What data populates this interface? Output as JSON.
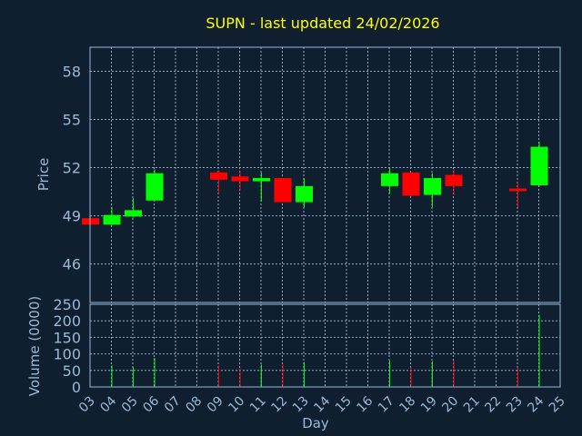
{
  "colors": {
    "background": "#0f1f30",
    "up": "#00ff00",
    "down": "#ff0000",
    "text": "#9ab8d6",
    "title": "#ffff00"
  },
  "chart_data": {
    "type": "candlestick",
    "title": "SUPN - last updated 24/02/2026",
    "xlabel": "Day",
    "price_ylabel": "Price",
    "volume_ylabel": "Volume (0000)",
    "x_ticks": [
      "03",
      "04",
      "05",
      "06",
      "07",
      "08",
      "09",
      "10",
      "11",
      "12",
      "13",
      "14",
      "15",
      "16",
      "17",
      "18",
      "19",
      "20",
      "21",
      "22",
      "23",
      "24",
      "25"
    ],
    "price_ylim": [
      43.6,
      59.5
    ],
    "price_yticks": [
      46,
      49,
      52,
      55,
      58
    ],
    "volume_ylim": [
      0,
      250
    ],
    "volume_yticks": [
      0,
      50,
      100,
      150,
      200,
      250
    ],
    "grid": true,
    "candles": [
      {
        "day": 3,
        "open": 48.85,
        "close": 48.45,
        "high": 48.9,
        "low": 48.45,
        "volume": 0
      },
      {
        "day": 4,
        "open": 48.45,
        "close": 49.05,
        "high": 49.55,
        "low": 48.4,
        "volume": 65
      },
      {
        "day": 5,
        "open": 48.95,
        "close": 49.35,
        "high": 50.1,
        "low": 48.9,
        "volume": 60
      },
      {
        "day": 6,
        "open": 49.95,
        "close": 51.65,
        "high": 51.9,
        "low": 49.95,
        "volume": 88
      },
      {
        "day": 9,
        "open": 51.7,
        "close": 51.25,
        "high": 51.85,
        "low": 50.4,
        "volume": 65
      },
      {
        "day": 10,
        "open": 51.45,
        "close": 51.15,
        "high": 51.8,
        "low": 50.6,
        "volume": 55
      },
      {
        "day": 11,
        "open": 51.15,
        "close": 51.35,
        "high": 51.7,
        "low": 49.9,
        "volume": 68
      },
      {
        "day": 12,
        "open": 51.35,
        "close": 49.85,
        "high": 51.35,
        "low": 49.85,
        "volume": 70
      },
      {
        "day": 13,
        "open": 49.85,
        "close": 50.85,
        "high": 51.35,
        "low": 49.55,
        "volume": 75
      },
      {
        "day": 17,
        "open": 50.85,
        "close": 51.65,
        "high": 51.95,
        "low": 50.4,
        "volume": 80
      },
      {
        "day": 18,
        "open": 51.7,
        "close": 50.25,
        "high": 51.7,
        "low": 50.2,
        "volume": 60
      },
      {
        "day": 19,
        "open": 50.3,
        "close": 51.35,
        "high": 51.65,
        "low": 49.55,
        "volume": 78
      },
      {
        "day": 20,
        "open": 51.55,
        "close": 50.85,
        "high": 51.9,
        "low": 50.3,
        "volume": 80
      },
      {
        "day": 23,
        "open": 50.7,
        "close": 50.55,
        "high": 51.1,
        "low": 49.55,
        "volume": 58
      },
      {
        "day": 24,
        "open": 50.9,
        "close": 53.3,
        "high": 53.6,
        "low": 50.85,
        "volume": 218
      }
    ]
  }
}
